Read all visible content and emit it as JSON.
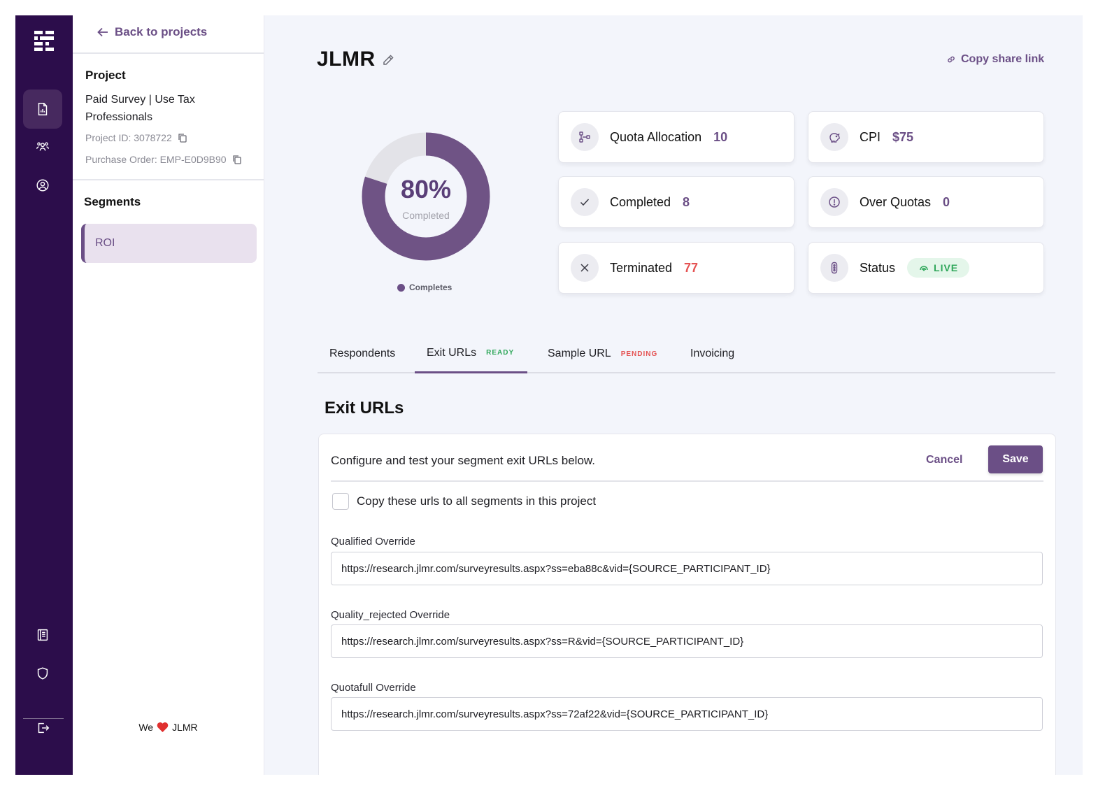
{
  "sidebar": {
    "back_label": "Back to projects",
    "project_heading": "Project",
    "project_name": "Paid Survey | Use Tax Professionals",
    "project_id": "Project ID: 3078722",
    "purchase_order": "Purchase Order: EMP-E0D9B90",
    "segments_heading": "Segments",
    "segments": [
      {
        "label": "ROI"
      }
    ],
    "footer": {
      "prefix": "We",
      "suffix": "JLMR"
    }
  },
  "header": {
    "title": "JLMR",
    "share_label": "Copy share link"
  },
  "donut": {
    "percent_label": "80%",
    "sub_label": "Completed",
    "legend": "Completes",
    "fraction": 0.8
  },
  "stats": {
    "quota": {
      "label": "Quota Allocation",
      "value": "10"
    },
    "cpi": {
      "label": "CPI",
      "value": "$75"
    },
    "completed": {
      "label": "Completed",
      "value": "8"
    },
    "over": {
      "label": "Over Quotas",
      "value": "0"
    },
    "terminated": {
      "label": "Terminated",
      "value": "77"
    },
    "status": {
      "label": "Status",
      "value": "LIVE"
    }
  },
  "tabs": [
    {
      "label": "Respondents",
      "tag": ""
    },
    {
      "label": "Exit URLs",
      "tag": "READY"
    },
    {
      "label": "Sample URL",
      "tag": "PENDING"
    },
    {
      "label": "Invoicing",
      "tag": ""
    }
  ],
  "exit_urls": {
    "title": "Exit URLs",
    "description": "Configure and test your segment exit URLs below.",
    "cancel_label": "Cancel",
    "save_label": "Save",
    "copy_all_label": "Copy these urls to all segments in this project",
    "fields": [
      {
        "label": "Qualified Override",
        "value": "https://research.jlmr.com/surveyresults.aspx?ss=eba88c&vid={SOURCE_PARTICIPANT_ID}"
      },
      {
        "label": "Quality_rejected Override",
        "value": "https://research.jlmr.com/surveyresults.aspx?ss=R&vid={SOURCE_PARTICIPANT_ID}"
      },
      {
        "label": "Quotafull Override",
        "value": "https://research.jlmr.com/surveyresults.aspx?ss=72af22&vid={SOURCE_PARTICIPANT_ID}"
      }
    ]
  },
  "colors": {
    "rail": "#2c0d4b",
    "accent": "#6b4f86",
    "danger": "#e55353",
    "success": "#2fa75a"
  }
}
